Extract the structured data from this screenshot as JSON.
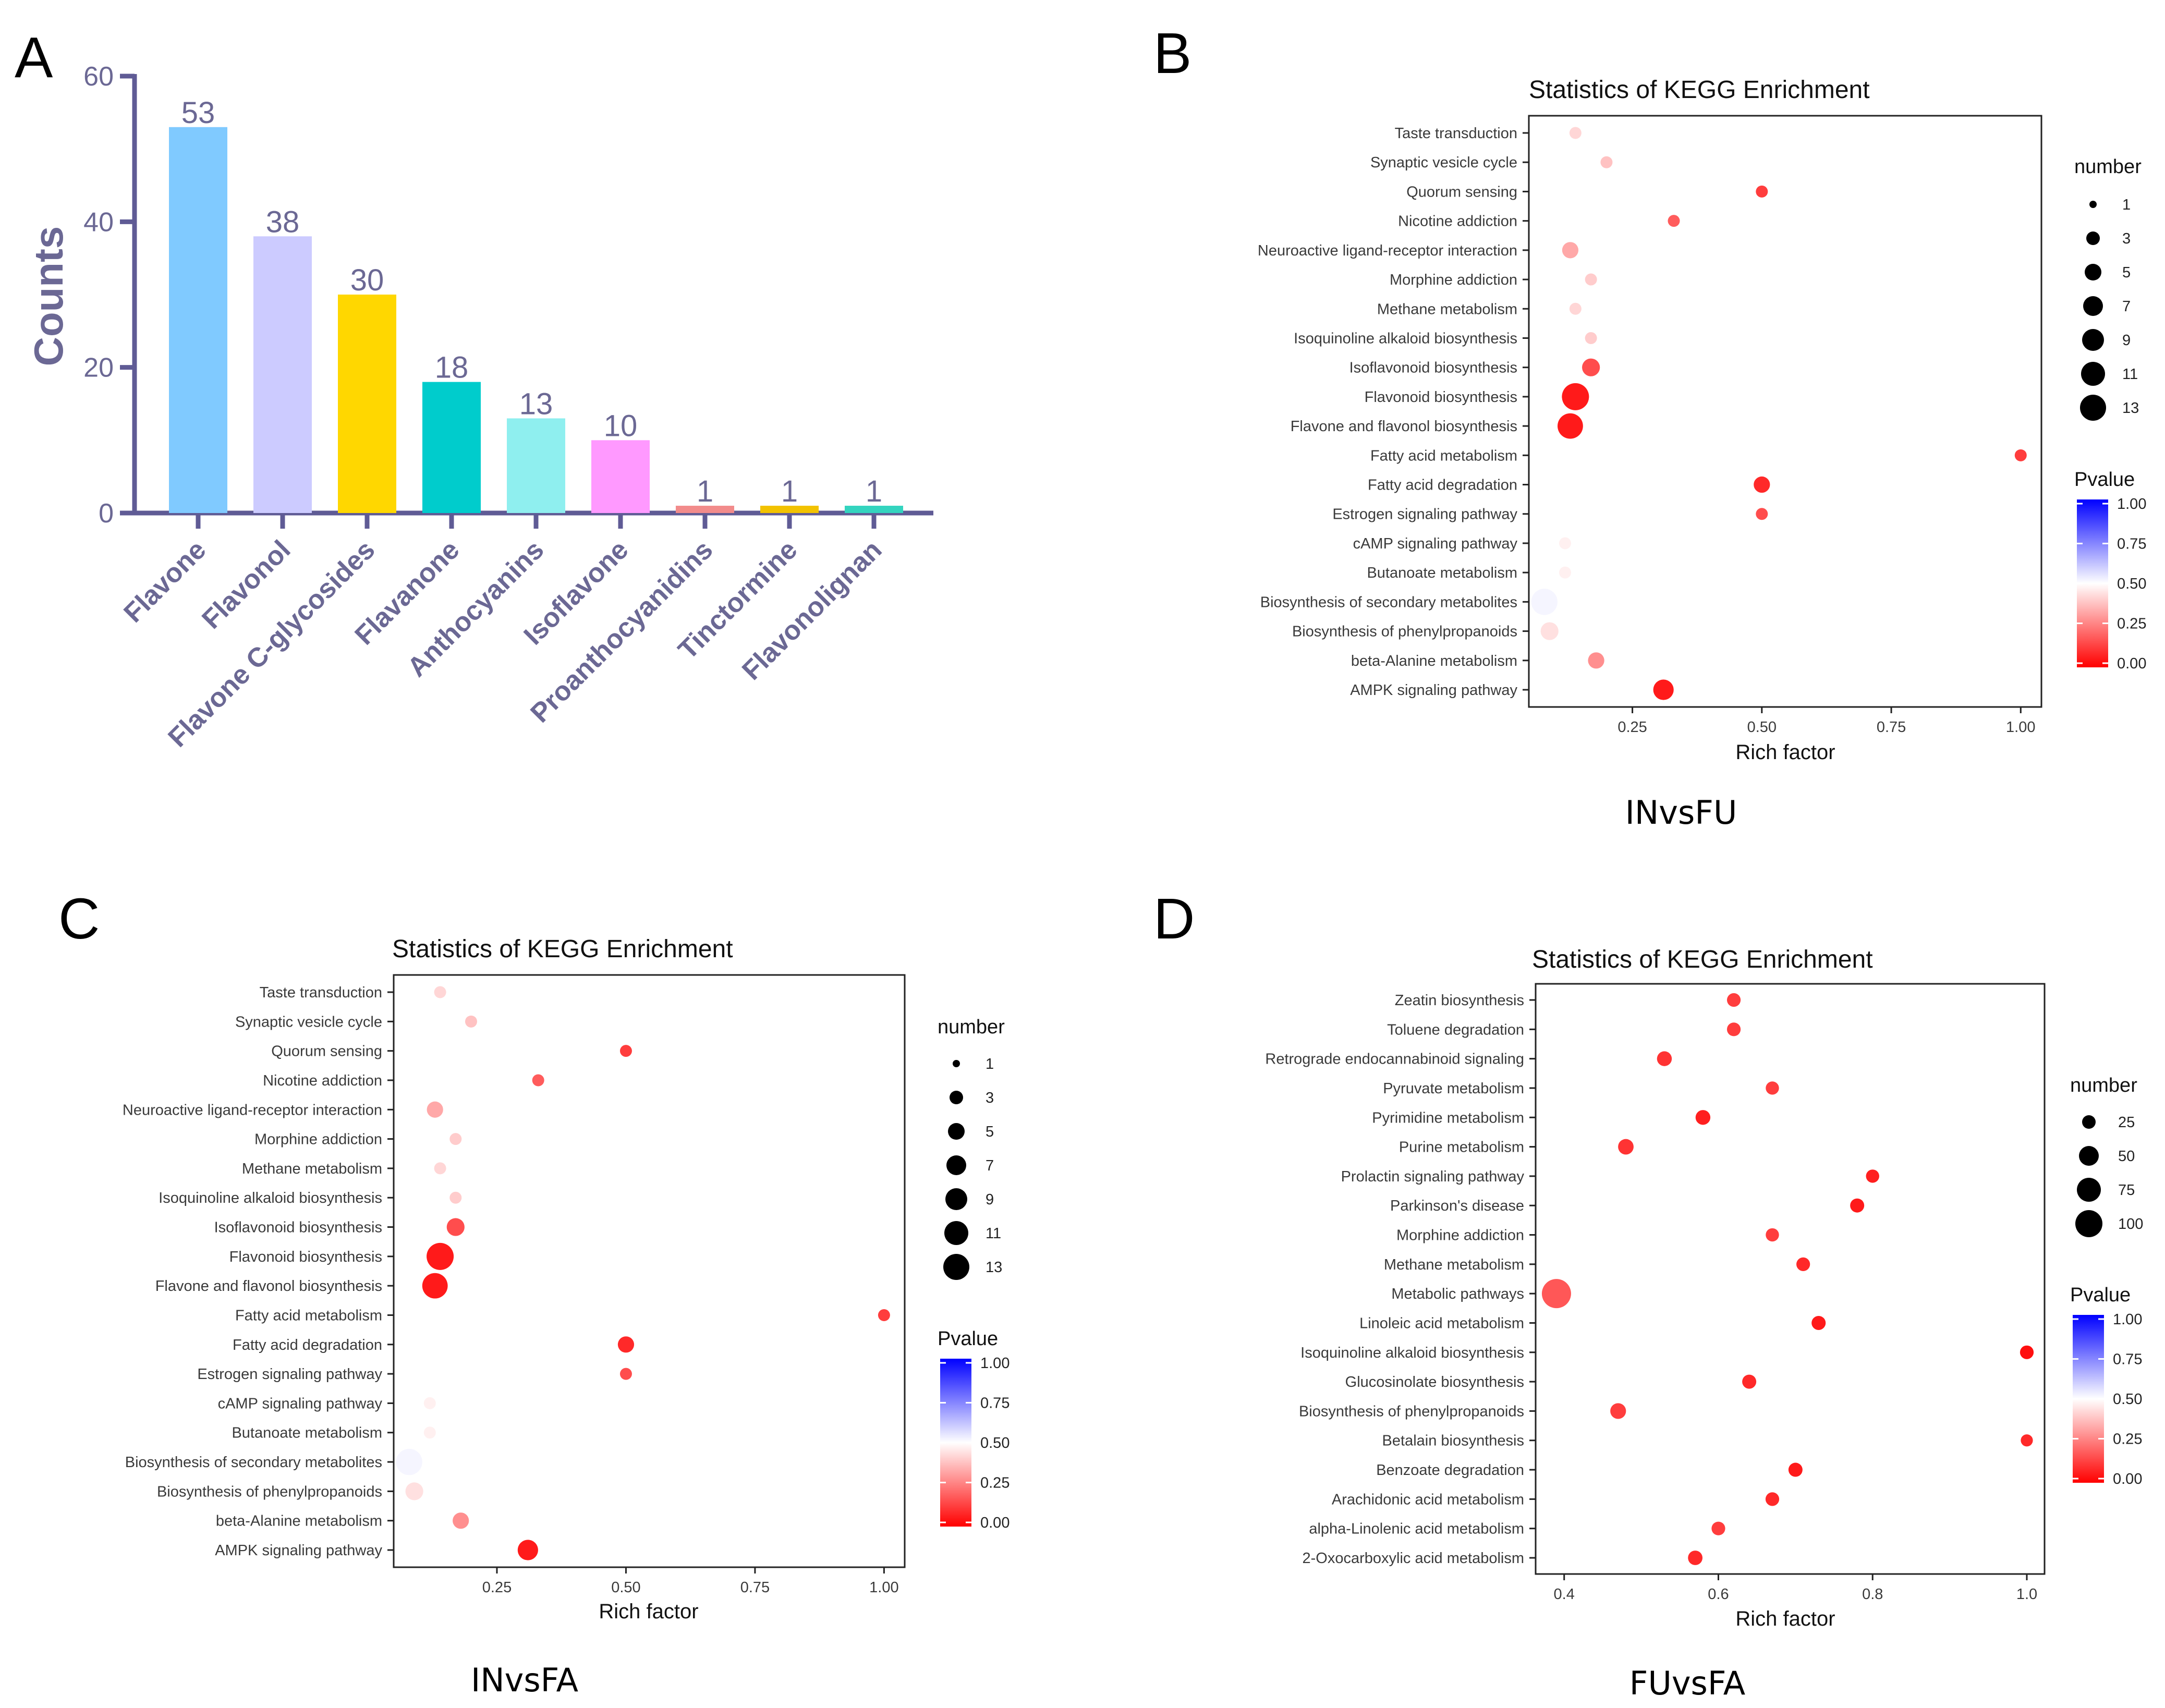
{
  "panel_letters": [
    "A",
    "B",
    "C",
    "D"
  ],
  "colors": {
    "axis": "#5f5b95",
    "label": "#6b6894",
    "p_low": "#ff0000",
    "p_mid": "#ffffff",
    "p_high": "#0000ff"
  },
  "chart_data": [
    {
      "panel": "A",
      "type": "bar",
      "title": "",
      "xlabel": "",
      "ylabel": "Counts",
      "ylim": [
        0,
        60
      ],
      "yticks": [
        0,
        20,
        40,
        60
      ],
      "categories": [
        "Flavone",
        "Flavonol",
        "Flavone C-glycosides",
        "Flavanone",
        "Anthocyanins",
        "Isoflavone",
        "Proanthocyanidins",
        "Tinctormine",
        "Flavonolignan"
      ],
      "values": [
        53,
        38,
        30,
        18,
        13,
        10,
        1,
        1,
        1
      ],
      "bar_colors": [
        "#80caff",
        "#cccbff",
        "#ffd700",
        "#00cccc",
        "#8fefef",
        "#ff99ff",
        "#f28b8b",
        "#f2c200",
        "#33d4bf"
      ]
    },
    {
      "panel": "B",
      "type": "scatter",
      "title": "Statistics of KEGG Enrichment",
      "xlabel": "Rich factor",
      "ylabel": "",
      "caption": "INvsFU",
      "xlim": [
        0.05,
        1.04
      ],
      "xticks": [
        "0.25",
        "0.50",
        "0.75",
        "1.00"
      ],
      "size_legend": {
        "title": "number",
        "values": [
          "1",
          "3",
          "5",
          "7",
          "9",
          "11",
          "13"
        ]
      },
      "color_legend": {
        "title": "Pvalue",
        "ticks": [
          "1.00",
          "0.75",
          "0.50",
          "0.25",
          "0.00"
        ]
      },
      "categories": [
        "Taste transduction",
        "Synaptic vesicle cycle",
        "Quorum sensing",
        "Nicotine addiction",
        "Neuroactive ligand-receptor interaction",
        "Morphine addiction",
        "Methane metabolism",
        "Isoquinoline alkaloid biosynthesis",
        "Isoflavonoid biosynthesis",
        "Flavonoid biosynthesis",
        "Flavone and flavonol biosynthesis",
        "Fatty acid metabolism",
        "Fatty acid degradation",
        "Estrogen signaling pathway",
        "cAMP signaling pathway",
        "Butanoate metabolism",
        "Biosynthesis of secondary metabolites",
        "Biosynthesis of phenylpropanoids",
        "beta-Alanine metabolism",
        "AMPK signaling pathway"
      ],
      "rich_factor": [
        0.14,
        0.2,
        0.5,
        0.33,
        0.13,
        0.17,
        0.14,
        0.17,
        0.17,
        0.14,
        0.13,
        1.0,
        0.5,
        0.5,
        0.12,
        0.12,
        0.08,
        0.09,
        0.18,
        0.31
      ],
      "number": [
        1,
        1,
        1,
        1,
        3,
        1,
        1,
        1,
        4,
        13,
        11,
        1,
        3,
        1,
        1,
        1,
        12,
        4,
        3,
        6
      ],
      "pvalue": [
        0.42,
        0.38,
        0.12,
        0.18,
        0.33,
        0.4,
        0.42,
        0.4,
        0.15,
        0.05,
        0.05,
        0.12,
        0.08,
        0.15,
        0.47,
        0.47,
        0.52,
        0.44,
        0.28,
        0.05
      ]
    },
    {
      "panel": "C",
      "type": "scatter",
      "title": "Statistics of KEGG Enrichment",
      "xlabel": "Rich factor",
      "ylabel": "",
      "caption": "INvsFA",
      "xlim": [
        0.05,
        1.04
      ],
      "xticks": [
        "0.25",
        "0.50",
        "0.75",
        "1.00"
      ],
      "size_legend": {
        "title": "number",
        "values": [
          "1",
          "3",
          "5",
          "7",
          "9",
          "11",
          "13"
        ]
      },
      "color_legend": {
        "title": "Pvalue",
        "ticks": [
          "1.00",
          "0.75",
          "0.50",
          "0.25",
          "0.00"
        ]
      },
      "categories": [
        "Taste transduction",
        "Synaptic vesicle cycle",
        "Quorum sensing",
        "Nicotine addiction",
        "Neuroactive ligand-receptor interaction",
        "Morphine addiction",
        "Methane metabolism",
        "Isoquinoline alkaloid biosynthesis",
        "Isoflavonoid biosynthesis",
        "Flavonoid biosynthesis",
        "Flavone and flavonol biosynthesis",
        "Fatty acid metabolism",
        "Fatty acid degradation",
        "Estrogen signaling pathway",
        "cAMP signaling pathway",
        "Butanoate metabolism",
        "Biosynthesis of secondary metabolites",
        "Biosynthesis of phenylpropanoids",
        "beta-Alanine metabolism",
        "AMPK signaling pathway"
      ],
      "rich_factor": [
        0.14,
        0.2,
        0.5,
        0.33,
        0.13,
        0.17,
        0.14,
        0.17,
        0.17,
        0.14,
        0.13,
        1.0,
        0.5,
        0.5,
        0.12,
        0.12,
        0.08,
        0.09,
        0.18,
        0.31
      ],
      "number": [
        1,
        1,
        1,
        1,
        3,
        1,
        1,
        1,
        4,
        13,
        11,
        1,
        3,
        1,
        1,
        1,
        12,
        4,
        3,
        6
      ],
      "pvalue": [
        0.42,
        0.38,
        0.12,
        0.18,
        0.33,
        0.4,
        0.42,
        0.4,
        0.15,
        0.05,
        0.05,
        0.12,
        0.08,
        0.15,
        0.47,
        0.47,
        0.52,
        0.44,
        0.28,
        0.05
      ]
    },
    {
      "panel": "D",
      "type": "scatter",
      "title": "Statistics of KEGG Enrichment",
      "xlabel": "Rich factor",
      "ylabel": "",
      "caption": "FUvsFA",
      "xlim": [
        0.363,
        1.023
      ],
      "xticks": [
        "0.4",
        "0.6",
        "0.8",
        "1.0"
      ],
      "xtick_values": [
        0.4,
        0.6,
        0.8,
        1.0
      ],
      "size_legend": {
        "title": "number",
        "values": [
          "25",
          "50",
          "75",
          "100"
        ]
      },
      "color_legend": {
        "title": "Pvalue",
        "ticks": [
          "1.00",
          "0.75",
          "0.50",
          "0.25",
          "0.00"
        ]
      },
      "categories": [
        "Zeatin biosynthesis",
        "Toluene degradation",
        "Retrograde endocannabinoid signaling",
        "Pyruvate metabolism",
        "Pyrimidine metabolism",
        "Purine metabolism",
        "Prolactin signaling pathway",
        "Parkinson's disease",
        "Morphine addiction",
        "Methane metabolism",
        "Metabolic pathways",
        "Linoleic acid metabolism",
        "Isoquinoline alkaloid biosynthesis",
        "Glucosinolate biosynthesis",
        "Biosynthesis of phenylpropanoids",
        "Betalain biosynthesis",
        "Benzoate degradation",
        "Arachidonic acid metabolism",
        "alpha-Linolenic acid metabolism",
        "2-Oxocarboxylic acid metabolism"
      ],
      "rich_factor": [
        0.62,
        0.62,
        0.53,
        0.67,
        0.58,
        0.48,
        0.8,
        0.78,
        0.67,
        0.71,
        0.39,
        0.73,
        1.0,
        0.64,
        0.47,
        1.0,
        0.7,
        0.67,
        0.6,
        0.57
      ],
      "number": [
        5,
        5,
        8,
        4,
        8,
        10,
        4,
        6,
        4,
        5,
        105,
        6,
        5,
        6,
        11,
        2,
        6,
        5,
        5,
        7
      ],
      "pvalue": [
        0.12,
        0.12,
        0.1,
        0.12,
        0.06,
        0.1,
        0.06,
        0.05,
        0.12,
        0.08,
        0.17,
        0.05,
        0.03,
        0.08,
        0.12,
        0.08,
        0.05,
        0.08,
        0.12,
        0.08
      ]
    }
  ]
}
